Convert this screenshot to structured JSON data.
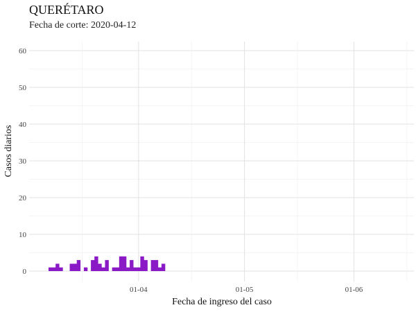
{
  "chart_data": {
    "type": "bar",
    "title": "QUERÉTARO",
    "subtitle": "Fecha de corte: 2020-04-12",
    "xlabel": "Fecha de ingreso del caso",
    "ylabel": "Casos diarios",
    "ylim": [
      0,
      60
    ],
    "yticks": [
      0,
      10,
      20,
      30,
      40,
      50,
      60
    ],
    "xlim": [
      "2020-03-01",
      "2020-06-18"
    ],
    "xticks": [
      {
        "date": "2020-04-01",
        "label": "01-04"
      },
      {
        "date": "2020-05-01",
        "label": "01-05"
      },
      {
        "date": "2020-06-01",
        "label": "01-06"
      }
    ],
    "x_minor_ticks": [
      "2020-03-16",
      "2020-04-16",
      "2020-05-16",
      "2020-06-16"
    ],
    "grid": true,
    "color": "#8a1ac5",
    "series": [
      {
        "x": [
          "2020-03-07",
          "2020-03-08",
          "2020-03-09",
          "2020-03-10",
          "2020-03-13",
          "2020-03-14",
          "2020-03-15",
          "2020-03-17",
          "2020-03-19",
          "2020-03-20",
          "2020-03-21",
          "2020-03-22",
          "2020-03-23",
          "2020-03-25",
          "2020-03-26",
          "2020-03-27",
          "2020-03-28",
          "2020-03-29",
          "2020-03-30",
          "2020-03-31",
          "2020-04-01",
          "2020-04-02",
          "2020-04-03",
          "2020-04-05",
          "2020-04-06",
          "2020-04-07",
          "2020-04-08",
          "2020-04-09",
          "2020-04-10"
        ],
        "values": [
          1,
          1,
          2,
          1,
          2,
          2,
          3,
          1,
          3,
          4,
          2,
          1,
          3,
          1,
          1,
          4,
          4,
          1,
          3,
          1,
          1,
          4,
          3,
          3,
          3,
          1,
          2,
          0,
          0
        ]
      }
    ]
  }
}
